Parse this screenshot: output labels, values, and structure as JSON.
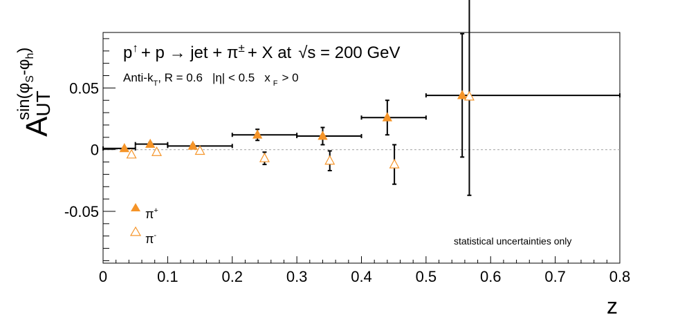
{
  "chart_data": {
    "type": "scatter",
    "title": "p↑ + p → jet + π± + X at √s = 200 GeV",
    "title_parts": {
      "p": "p",
      "arrow_up": "↑",
      "reaction": "+ p → jet + π",
      "charge": "±",
      "rest": "+ X at",
      "sqrt": "√",
      "energy": "s = 200 GeV"
    },
    "subtitle_parts": {
      "algo": "Anti-k",
      "algo_sub": "T",
      "algo_rest": ", R = 0.6",
      "eta": "|η| < 0.5",
      "xf": "x",
      "xf_sub": "F",
      "xf_rest": "> 0"
    },
    "xlabel": "z",
    "ylabel_parts": {
      "main": "A",
      "sub": "UT",
      "sup": "sin(φ",
      "sup_s": "S",
      "sup_mid": "-φ",
      "sup_h": "h",
      "sup_end": ")"
    },
    "xlim": [
      0,
      0.8
    ],
    "ylim": [
      -0.092,
      0.095
    ],
    "x_ticks": [
      {
        "value": 0,
        "label": "0"
      },
      {
        "value": 0.1,
        "label": "0.1"
      },
      {
        "value": 0.2,
        "label": "0.2"
      },
      {
        "value": 0.3,
        "label": "0.3"
      },
      {
        "value": 0.4,
        "label": "0.4"
      },
      {
        "value": 0.5,
        "label": "0.5"
      },
      {
        "value": 0.6,
        "label": "0.6"
      },
      {
        "value": 0.7,
        "label": "0.7"
      },
      {
        "value": 0.8,
        "label": "0.8"
      }
    ],
    "y_ticks": [
      {
        "value": 0.05,
        "label": "0.05"
      },
      {
        "value": 0,
        "label": "0"
      },
      {
        "value": -0.05,
        "label": "-0.05"
      }
    ],
    "annotation": "statistical uncertainties only",
    "annotation_color": "#e8000b",
    "marker_color": "#f59428",
    "legend_position": "bottom-left",
    "series": [
      {
        "name": "π+",
        "legend_main": "π",
        "legend_sup": "+",
        "marker": "filled-triangle",
        "points": [
          {
            "x": 0.033,
            "y": 0.001,
            "xlo": 0.0,
            "xhi": 0.05,
            "err": 0.0007
          },
          {
            "x": 0.073,
            "y": 0.0045,
            "xlo": 0.05,
            "xhi": 0.1,
            "err": 0.0012
          },
          {
            "x": 0.139,
            "y": 0.003,
            "xlo": 0.1,
            "xhi": 0.2,
            "err": 0.0012
          },
          {
            "x": 0.239,
            "y": 0.012,
            "xlo": 0.2,
            "xhi": 0.3,
            "err": 0.0045
          },
          {
            "x": 0.34,
            "y": 0.011,
            "xlo": 0.3,
            "xhi": 0.4,
            "err": 0.007
          },
          {
            "x": 0.44,
            "y": 0.026,
            "xlo": 0.4,
            "xhi": 0.5,
            "err": 0.014
          },
          {
            "x": 0.556,
            "y": 0.044,
            "xlo": 0.5,
            "xhi": 0.8,
            "err": 0.05
          }
        ]
      },
      {
        "name": "π-",
        "legend_main": "π",
        "legend_sup": "-",
        "marker": "open-triangle",
        "points": [
          {
            "x": 0.044,
            "y": -0.004,
            "err": 0.0008
          },
          {
            "x": 0.083,
            "y": -0.002,
            "err": 0.0012
          },
          {
            "x": 0.15,
            "y": -0.001,
            "err": 0.0012
          },
          {
            "x": 0.25,
            "y": -0.007,
            "err": 0.005
          },
          {
            "x": 0.351,
            "y": -0.009,
            "err": 0.008
          },
          {
            "x": 0.451,
            "y": -0.012,
            "err": 0.016
          },
          {
            "x": 0.567,
            "y": 0.043,
            "err": 0.08
          }
        ]
      }
    ]
  }
}
